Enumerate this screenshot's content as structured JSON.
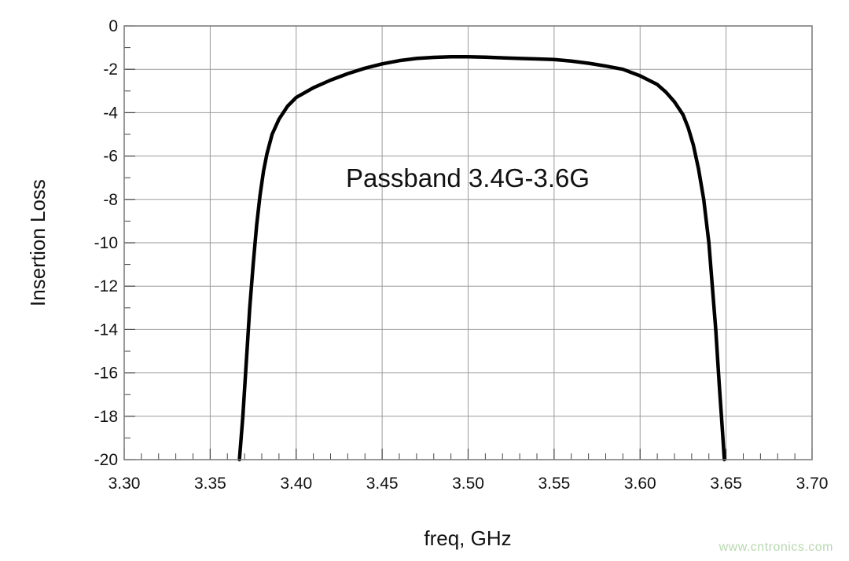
{
  "chart_data": {
    "type": "line",
    "xlabel": "freq, GHz",
    "ylabel": "Insertion Loss",
    "annotation": "Passband 3.4G-3.6G",
    "xlim": [
      3.3,
      3.7
    ],
    "ylim": [
      -20,
      0
    ],
    "x_ticks": [
      "3.30",
      "3.35",
      "3.40",
      "3.45",
      "3.50",
      "3.55",
      "3.60",
      "3.65",
      "3.70"
    ],
    "y_ticks": [
      "0",
      "-2",
      "-4",
      "-6",
      "-8",
      "-10",
      "-12",
      "-14",
      "-16",
      "-18",
      "-20"
    ],
    "grid": true,
    "series": [
      {
        "x": [
          3.367,
          3.369,
          3.371,
          3.373,
          3.375,
          3.377,
          3.379,
          3.381,
          3.383,
          3.386,
          3.39,
          3.395,
          3.4,
          3.41,
          3.42,
          3.43,
          3.44,
          3.45,
          3.46,
          3.47,
          3.48,
          3.49,
          3.5,
          3.51,
          3.52,
          3.53,
          3.54,
          3.55,
          3.56,
          3.57,
          3.58,
          3.59,
          3.6,
          3.61,
          3.615,
          3.62,
          3.625,
          3.628,
          3.631,
          3.634,
          3.637,
          3.64,
          3.642,
          3.644,
          3.646,
          3.648,
          3.649
        ],
        "y": [
          -20,
          -18,
          -15.5,
          -13,
          -11,
          -9.2,
          -7.8,
          -6.7,
          -5.9,
          -5.0,
          -4.3,
          -3.7,
          -3.3,
          -2.85,
          -2.5,
          -2.2,
          -1.95,
          -1.75,
          -1.6,
          -1.5,
          -1.45,
          -1.42,
          -1.42,
          -1.44,
          -1.47,
          -1.5,
          -1.52,
          -1.55,
          -1.62,
          -1.72,
          -1.85,
          -2.0,
          -2.3,
          -2.7,
          -3.05,
          -3.5,
          -4.1,
          -4.7,
          -5.5,
          -6.6,
          -8.0,
          -10.0,
          -12.0,
          -14.0,
          -16.5,
          -18.8,
          -20
        ],
        "color": "#000000"
      }
    ]
  },
  "watermark": "www.cntronics.com"
}
